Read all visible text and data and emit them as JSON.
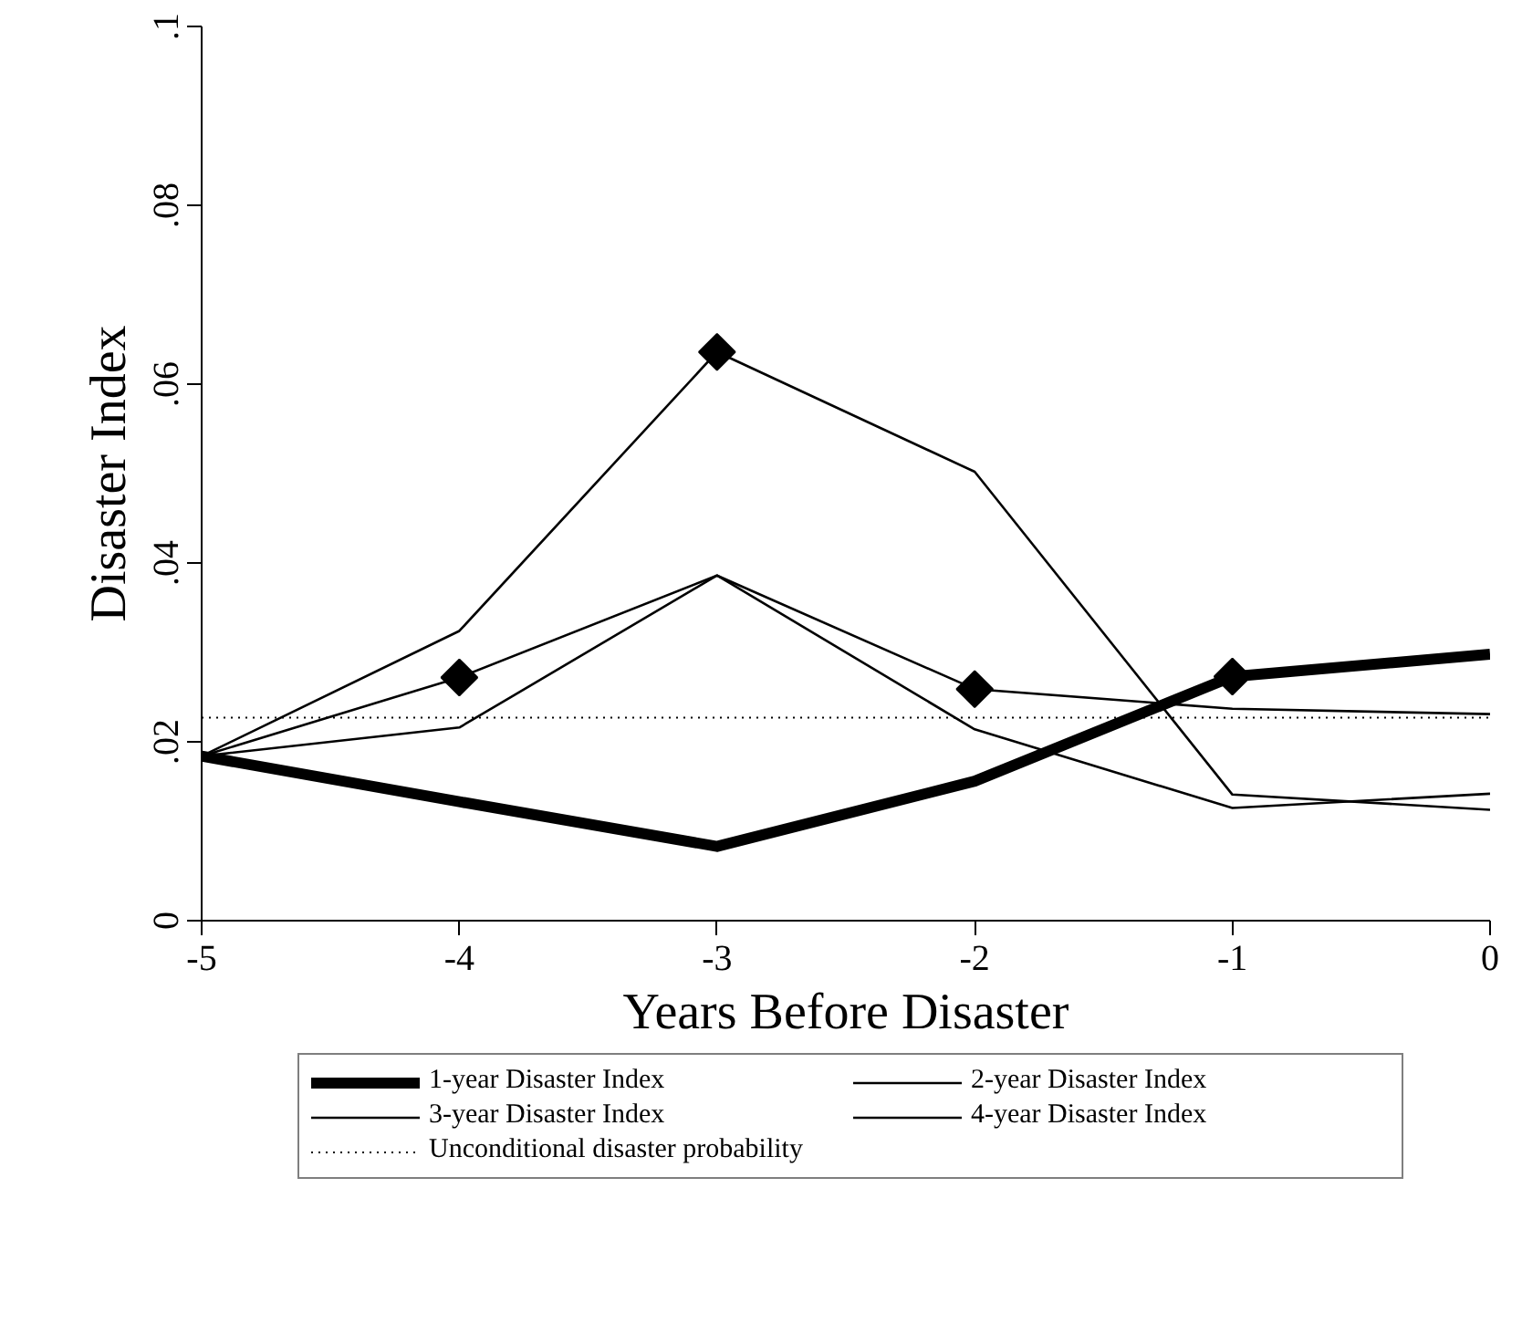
{
  "chart_data": {
    "type": "line",
    "xlabel": "Years Before Disaster",
    "ylabel": "Disaster Index",
    "x": [
      -5,
      -4,
      -3,
      -2,
      -1,
      0
    ],
    "series": [
      {
        "name": "1-year Disaster Index",
        "color": "#000000",
        "values": [
          0.0184,
          0.0133,
          0.0083,
          0.0156,
          0.0273,
          0.0298
        ]
      },
      {
        "name": "2-year Disaster Index",
        "color": "#000000",
        "values": [
          0.0184,
          0.0324,
          0.0636,
          0.0502,
          0.0141,
          0.0124
        ]
      },
      {
        "name": "3-year Disaster Index",
        "color": "#000000",
        "values": [
          0.0184,
          0.0272,
          0.0386,
          0.0259,
          0.0237,
          0.0231
        ]
      },
      {
        "name": "4-year Disaster Index",
        "color": "#000000",
        "values": [
          0.0184,
          0.0216,
          0.0386,
          0.0214,
          0.0126,
          0.0142
        ]
      },
      {
        "type": "scatter",
        "marker": "diamond",
        "color": "#000000",
        "x": [
          -4,
          -3,
          -2,
          -1
        ],
        "values": [
          0.0272,
          0.0636,
          0.0259,
          0.0273
        ]
      }
    ],
    "ref_lines": [
      {
        "axis": "y",
        "value": 0.0227,
        "label": "Unconditional disaster probability",
        "color": "#000000",
        "line_style": "dotted"
      }
    ],
    "xlim": [
      -5,
      0
    ],
    "ylim": [
      0,
      0.1
    ],
    "xticks": [
      -5,
      -4,
      -3,
      -2,
      -1,
      0
    ],
    "yticks": [
      0,
      {
        "value": 0.02,
        "label": ".02"
      },
      {
        "value": 0.04,
        "label": ".04"
      },
      {
        "value": 0.06,
        "label": ".06"
      },
      {
        "value": 0.08,
        "label": ".08"
      },
      {
        "value": 0.1,
        "label": ".1"
      }
    ],
    "grid": false,
    "legend": "bottom",
    "marker": "none",
    "line_style": "solid"
  }
}
